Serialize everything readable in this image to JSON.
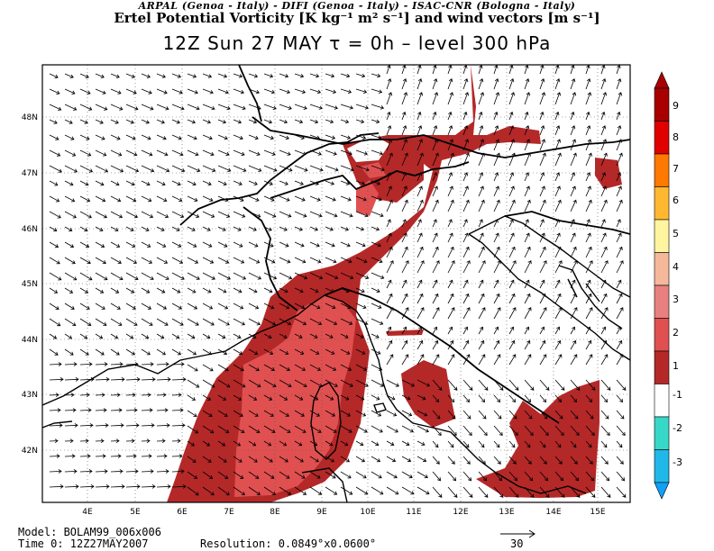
{
  "header": {
    "credits": "ARPAL (Genoa - Italy)  -  DIFI (Genoa - Italy)  -  ISAC-CNR (Bologna - Italy)",
    "title": "Ertel Potential Vorticity [K kg⁻¹ m² s⁻¹] and wind vectors [m s⁻¹]",
    "subtitle": "12Z Sun 27 MAY  τ = 0h  –  level 300 hPa"
  },
  "axes": {
    "lon_labels": [
      "4E",
      "5E",
      "6E",
      "7E",
      "8E",
      "9E",
      "10E",
      "11E",
      "12E",
      "13E",
      "14E",
      "15E"
    ],
    "lat_labels": [
      "42N",
      "43N",
      "44N",
      "45N",
      "46N",
      "47N",
      "48N"
    ]
  },
  "colorbar": {
    "labels": [
      "9",
      "8",
      "7",
      "6",
      "5",
      "4",
      "3",
      "2",
      "1",
      "-1",
      "-2",
      "-3"
    ],
    "colors": {
      "pv_9": "#a80000",
      "pv_8": "#e00000",
      "pv_7": "#ff7800",
      "pv_6": "#ffb830",
      "pv_5": "#fff5a0",
      "pv_4": "#f5b89a",
      "pv_3": "#e88080",
      "pv_2": "#e05050",
      "pv_1": "#b52828",
      "neutral": "#ffffff",
      "neg_1": "#38d8c8",
      "neg_2": "#20b8e8",
      "neg_3": "#10a0f8"
    }
  },
  "legend": {
    "vector_label": "30"
  },
  "footer": {
    "model": "Model: BOLAM99_006x006",
    "time": "Time 0: 12Z27MAY2007",
    "resolution": "Resolution: 0.0849°x0.0600°"
  }
}
